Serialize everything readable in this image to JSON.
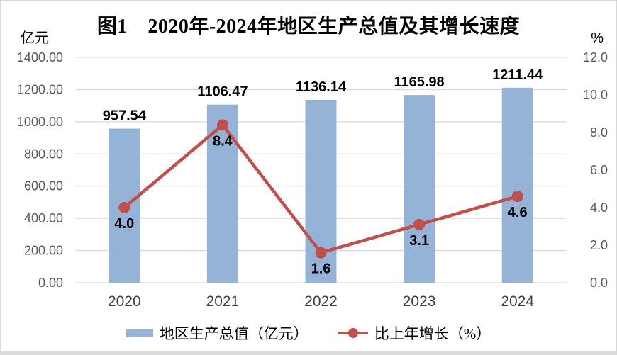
{
  "figure": {
    "title": "图1　2020年-2024年地区生产总值及其增长速度",
    "left_axis_unit": "亿元",
    "right_axis_unit": "%"
  },
  "chart_data": {
    "type": "bar",
    "subtype": "bar-line-combo",
    "title": "图1　2020年-2024年地区生产总值及其增长速度",
    "categories": [
      "2020",
      "2021",
      "2022",
      "2023",
      "2024"
    ],
    "series": [
      {
        "name": "地区生产总值（亿元）",
        "type": "bar",
        "axis": "left",
        "values": [
          957.54,
          1106.47,
          1136.14,
          1165.98,
          1211.44
        ],
        "labels": [
          "957.54",
          "1106.47",
          "1136.14",
          "1165.98",
          "1211.44"
        ],
        "color": "#95B3D7"
      },
      {
        "name": "比上年增长（%）",
        "type": "line",
        "axis": "right",
        "values": [
          4.0,
          8.4,
          1.6,
          3.1,
          4.6
        ],
        "labels": [
          "4.0",
          "8.4",
          "1.6",
          "3.1",
          "4.6"
        ],
        "color": "#C0504D"
      }
    ],
    "left_axis": {
      "unit": "亿元",
      "min": 0,
      "max": 1400,
      "step": 200,
      "tick_labels": [
        "0.00",
        "200.00",
        "400.00",
        "600.00",
        "800.00",
        "1000.00",
        "1200.00",
        "1400.00"
      ]
    },
    "right_axis": {
      "unit": "%",
      "min": 0,
      "max": 12,
      "step": 2,
      "tick_labels": [
        "0.0",
        "2.0",
        "4.0",
        "6.0",
        "8.0",
        "10.0",
        "12.0"
      ]
    },
    "grid": true,
    "legend_position": "bottom",
    "colors": {
      "gridline": "#D9D9D9",
      "tick_label": "#595959",
      "category_label": "#404040",
      "data_label": "#000000",
      "bar": "#95B3D7",
      "line": "#C0504D"
    }
  }
}
